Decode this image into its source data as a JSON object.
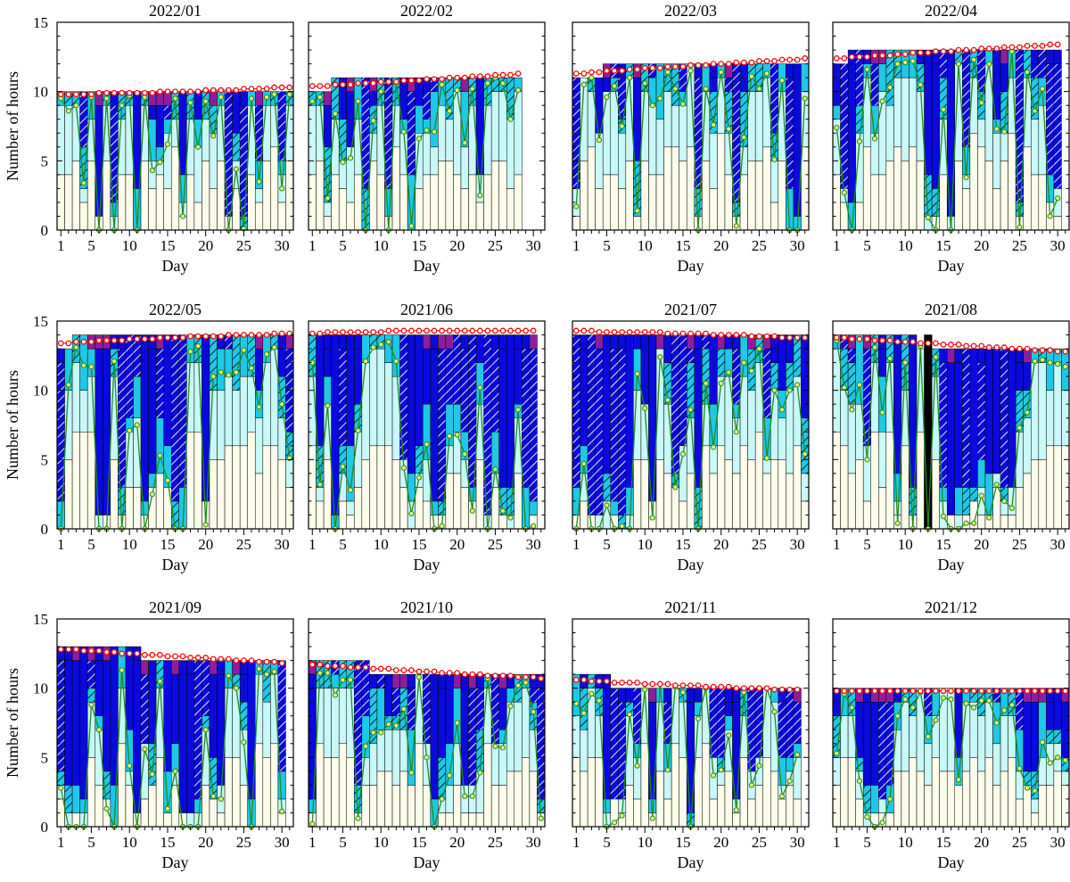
{
  "chart_data": {
    "type": "bar",
    "description_units": "hours per day, stacked categories",
    "ylabel": "Number of hours",
    "xlabel": "Day",
    "ylim": [
      0,
      15
    ],
    "yticks": [
      0,
      5,
      10,
      15
    ],
    "xticks": [
      1,
      5,
      10,
      15,
      20,
      25,
      30
    ],
    "colors": {
      "c0": "#FCFCEA",
      "c1": "#C8F8F8",
      "c2": "#1EC8E6",
      "c3": "#0A0ADC",
      "c4": "#8C1E9E",
      "c5": "#000000",
      "daylight_line": "#FF0000",
      "sunshine_line": "#1E8C1E",
      "sunshine_marker": "#E6F078"
    },
    "panels": [
      {
        "title": "2022/01",
        "days": 31,
        "daylight": [
          9.8,
          9.8,
          9.8,
          9.8,
          9.8,
          9.9,
          9.9,
          9.9,
          9.9,
          9.9,
          9.9,
          9.9,
          9.9,
          10.0,
          10.0,
          10.0,
          10.0,
          10.0,
          10.0,
          10.1,
          10.1,
          10.1,
          10.1,
          10.1,
          10.2,
          10.2,
          10.2,
          10.2,
          10.3,
          10.3,
          10.3
        ],
        "sunshine": [
          9.5,
          8.6,
          9.0,
          3.4,
          9.6,
          0,
          9.5,
          0,
          9.0,
          9.7,
          0,
          9.6,
          4.3,
          4.9,
          6.2,
          9.5,
          1.0,
          9.2,
          6.0,
          9.3,
          6.8,
          9.6,
          0,
          4.4,
          0.1,
          9.5,
          3.5,
          9.6,
          9.8,
          3.0,
          9.8
        ],
        "seed": 101
      },
      {
        "title": "2022/02",
        "days": 28,
        "daylight": [
          10.4,
          10.4,
          10.4,
          10.5,
          10.5,
          10.5,
          10.6,
          10.6,
          10.6,
          10.7,
          10.7,
          10.7,
          10.8,
          10.8,
          10.8,
          10.9,
          10.9,
          10.9,
          11.0,
          11.0,
          11.0,
          11.1,
          11.1,
          11.1,
          11.2,
          11.2,
          11.2,
          11.3
        ],
        "sunshine": [
          9.3,
          9.6,
          2.3,
          8.4,
          4.9,
          5.2,
          9.3,
          0,
          7.9,
          10.0,
          0,
          10.6,
          7.1,
          0.3,
          6.6,
          7.2,
          7.1,
          10.5,
          8.6,
          10.1,
          6.3,
          10.2,
          2.5,
          10.6,
          11.0,
          10.6,
          8.0,
          10.1
        ],
        "seed": 202
      },
      {
        "title": "2022/03",
        "days": 31,
        "daylight": [
          11.3,
          11.3,
          11.4,
          11.4,
          11.5,
          11.5,
          11.5,
          11.6,
          11.6,
          11.7,
          11.7,
          11.7,
          11.8,
          11.8,
          11.8,
          11.9,
          11.9,
          11.9,
          12.0,
          12.0,
          12.0,
          12.1,
          12.1,
          12.1,
          12.2,
          12.2,
          12.2,
          12.3,
          12.3,
          12.3,
          12.4
        ],
        "sunshine": [
          1.7,
          10.5,
          11.0,
          6.5,
          9.6,
          10.4,
          7.5,
          11.0,
          1.4,
          10.6,
          9.0,
          9.5,
          11.4,
          10.2,
          9.1,
          11.5,
          0,
          10.2,
          7.6,
          11.4,
          7.3,
          0.3,
          6.7,
          11.1,
          10.2,
          11.3,
          5.1,
          10.8,
          0,
          0,
          9.5
        ],
        "seed": 303
      },
      {
        "title": "2022/04",
        "days": 30,
        "daylight": [
          12.4,
          12.4,
          12.5,
          12.5,
          12.5,
          12.6,
          12.6,
          12.6,
          12.7,
          12.7,
          12.8,
          12.8,
          12.8,
          12.9,
          12.9,
          12.9,
          13.0,
          13.0,
          13.0,
          13.1,
          13.1,
          13.1,
          13.2,
          13.2,
          13.2,
          13.3,
          13.3,
          13.3,
          13.4,
          13.4
        ],
        "sunshine": [
          7.4,
          2.7,
          0,
          6.4,
          11.6,
          6.6,
          9.3,
          10.3,
          12.0,
          12.1,
          12.2,
          10.5,
          0.9,
          0,
          8.7,
          0,
          12.0,
          3.8,
          12.3,
          9.2,
          12.0,
          7.3,
          7.1,
          12.9,
          0.2,
          11.4,
          8.6,
          10.2,
          1.0,
          2.3
        ],
        "seed": 404
      },
      {
        "title": "2022/05",
        "days": 31,
        "daylight": [
          13.4,
          13.4,
          13.5,
          13.5,
          13.5,
          13.6,
          13.6,
          13.6,
          13.6,
          13.7,
          13.7,
          13.7,
          13.7,
          13.8,
          13.8,
          13.8,
          13.8,
          13.9,
          13.9,
          13.9,
          13.9,
          13.9,
          14.0,
          14.0,
          14.0,
          14.0,
          14.0,
          14.0,
          14.1,
          14.1,
          14.1
        ],
        "sunshine": [
          0,
          10.4,
          13.1,
          11.8,
          11.7,
          0,
          0,
          12.1,
          0,
          7.1,
          7.5,
          0,
          2.5,
          5.3,
          3.5,
          0,
          0,
          12.8,
          13.2,
          0.3,
          11.0,
          11.3,
          11.1,
          11.3,
          12.9,
          11.6,
          8.8,
          12.6,
          13.1,
          9.0,
          5.1
        ],
        "seed": 505
      },
      {
        "title": "2021/06",
        "days": 30,
        "daylight": [
          14.1,
          14.1,
          14.2,
          14.2,
          14.2,
          14.2,
          14.2,
          14.2,
          14.2,
          14.2,
          14.3,
          14.3,
          14.3,
          14.3,
          14.3,
          14.3,
          14.3,
          14.3,
          14.3,
          14.3,
          14.3,
          14.3,
          14.3,
          14.3,
          14.3,
          14.3,
          14.3,
          14.3,
          14.3,
          14.3
        ],
        "sunshine": [
          12.0,
          3.2,
          8.9,
          0,
          4.5,
          2.8,
          7.1,
          12.1,
          13.1,
          13.3,
          13.5,
          12.1,
          4.4,
          1.1,
          3.7,
          6.1,
          0,
          0.2,
          6.7,
          6.8,
          5.4,
          1.3,
          10.2,
          0,
          4.3,
          1.3,
          0.8,
          8.6,
          0,
          0.2
        ],
        "seed": 606
      },
      {
        "title": "2021/07",
        "days": 31,
        "daylight": [
          14.3,
          14.3,
          14.3,
          14.2,
          14.2,
          14.2,
          14.2,
          14.2,
          14.2,
          14.2,
          14.2,
          14.2,
          14.1,
          14.1,
          14.1,
          14.1,
          14.1,
          14.1,
          14.0,
          14.0,
          14.0,
          14.0,
          14.0,
          13.9,
          13.9,
          13.9,
          13.9,
          13.8,
          13.8,
          13.8,
          13.8
        ],
        "sunshine": [
          0,
          4.7,
          0,
          0,
          1.7,
          0,
          0.2,
          0,
          11.2,
          8.7,
          0.8,
          12.4,
          9.3,
          3.0,
          5.4,
          8.6,
          0,
          10.5,
          5.9,
          10.5,
          11.3,
          7.0,
          12.0,
          11.4,
          13.0,
          5.1,
          10.0,
          8.6,
          10.0,
          10.4,
          5.4
        ],
        "seed": 707
      },
      {
        "title": "2021/08",
        "days": 31,
        "daylight": [
          13.8,
          13.8,
          13.7,
          13.7,
          13.7,
          13.6,
          13.6,
          13.6,
          13.5,
          13.5,
          13.5,
          13.4,
          13.4,
          13.4,
          13.3,
          13.3,
          13.3,
          13.2,
          13.2,
          13.2,
          13.1,
          13.1,
          13.1,
          13.0,
          13.0,
          13.0,
          12.9,
          12.9,
          12.9,
          12.8,
          12.8
        ],
        "sunshine": [
          13.6,
          10.2,
          8.6,
          10.4,
          5.0,
          13.1,
          8.4,
          12.3,
          0.4,
          12.0,
          0,
          13.2,
          0,
          12.4,
          0.9,
          0,
          0,
          0.4,
          0.4,
          2.4,
          0.8,
          3.2,
          2.0,
          1.5,
          7.3,
          8.4,
          12.1,
          12.2,
          12.0,
          11.9,
          11.7
        ],
        "seed": 808
      },
      {
        "title": "2021/09",
        "days": 30,
        "daylight": [
          12.8,
          12.8,
          12.8,
          12.7,
          12.7,
          12.7,
          12.6,
          12.6,
          12.5,
          12.5,
          12.5,
          12.4,
          12.4,
          12.4,
          12.3,
          12.3,
          12.3,
          12.2,
          12.2,
          12.2,
          12.1,
          12.1,
          12.1,
          12.0,
          12.0,
          12.0,
          11.9,
          11.9,
          11.9,
          11.8
        ],
        "sunshine": [
          2.8,
          0,
          0,
          0,
          8.8,
          7.0,
          1.3,
          0,
          11.3,
          4.4,
          0,
          5.6,
          3.8,
          10.5,
          1.3,
          4.0,
          0,
          0,
          0,
          7.0,
          2.2,
          2.0,
          10.9,
          10.0,
          6.1,
          0,
          11.4,
          11.0,
          11.2,
          1.1
        ],
        "seed": 909
      },
      {
        "title": "2021/10",
        "days": 31,
        "daylight": [
          11.7,
          11.7,
          11.6,
          11.6,
          11.6,
          11.5,
          11.5,
          11.5,
          11.4,
          11.4,
          11.4,
          11.3,
          11.3,
          11.3,
          11.2,
          11.2,
          11.2,
          11.1,
          11.1,
          11.1,
          11.0,
          11.0,
          11.0,
          10.9,
          10.9,
          10.9,
          10.9,
          10.8,
          10.8,
          10.8,
          10.7
        ],
        "sunshine": [
          0.2,
          11.1,
          11.1,
          9.5,
          10.6,
          10.6,
          0.6,
          5.8,
          6.8,
          6.8,
          7.4,
          7.3,
          8.5,
          3.9,
          10.8,
          5.0,
          0,
          2.0,
          3.7,
          7.5,
          2.2,
          2.2,
          3.9,
          10.7,
          5.8,
          5.7,
          8.7,
          10.2,
          10.4,
          8.3,
          0.6
        ],
        "seed": 1010
      },
      {
        "title": "2021/11",
        "days": 30,
        "daylight": [
          10.6,
          10.6,
          10.5,
          10.5,
          10.5,
          10.4,
          10.4,
          10.4,
          10.4,
          10.3,
          10.3,
          10.3,
          10.3,
          10.2,
          10.2,
          10.2,
          10.2,
          10.1,
          10.1,
          10.1,
          10.1,
          10.0,
          10.0,
          10.0,
          10.0,
          10.0,
          9.9,
          9.9,
          9.9,
          9.9
        ],
        "sunshine": [
          8.9,
          8.2,
          9.6,
          9.1,
          0,
          0.3,
          0.8,
          8.1,
          4.4,
          9.9,
          0.6,
          10.3,
          4.1,
          10.1,
          9.7,
          0,
          7.8,
          10.0,
          3.7,
          4.1,
          6.6,
          1.2,
          9.7,
          3.0,
          4.4,
          10.0,
          8.3,
          2.2,
          3.3,
          5.2
        ],
        "seed": 1111
      },
      {
        "title": "2021/12",
        "days": 31,
        "daylight": [
          9.8,
          9.8,
          9.8,
          9.8,
          9.8,
          9.8,
          9.8,
          9.8,
          9.8,
          9.8,
          9.8,
          9.8,
          9.8,
          9.8,
          9.8,
          9.8,
          9.8,
          9.8,
          9.8,
          9.8,
          9.8,
          9.8,
          9.8,
          9.8,
          9.8,
          9.8,
          9.8,
          9.8,
          9.8,
          9.8,
          9.8
        ],
        "sunshine": [
          5.3,
          9.6,
          8.6,
          3.3,
          0.7,
          0,
          0.3,
          2.0,
          8.0,
          9.2,
          8.6,
          9.7,
          6.5,
          7.7,
          9.3,
          9.2,
          3.4,
          8.9,
          8.6,
          9.1,
          9.1,
          7.5,
          8.4,
          8.8,
          4.2,
          2.8,
          2.6,
          6.1,
          4.6,
          5.0,
          4.8
        ],
        "seed": 1212
      }
    ]
  }
}
